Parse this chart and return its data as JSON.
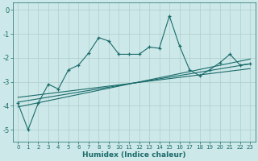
{
  "xlabel": "Humidex (Indice chaleur)",
  "bg_color": "#cde8e8",
  "grid_color": "#aecece",
  "line_color": "#1a6b6b",
  "xlim": [
    -0.5,
    23.5
  ],
  "ylim": [
    -5.5,
    0.3
  ],
  "yticks": [
    0,
    -1,
    -2,
    -3,
    -4,
    -5
  ],
  "xticks": [
    0,
    1,
    2,
    3,
    4,
    5,
    6,
    7,
    8,
    9,
    10,
    11,
    12,
    13,
    14,
    15,
    16,
    17,
    18,
    19,
    20,
    21,
    22,
    23
  ],
  "series1_x": [
    0,
    1,
    2,
    3,
    4,
    5,
    6,
    7,
    8,
    9,
    10,
    11,
    12,
    13,
    14,
    15,
    16,
    17,
    18,
    19,
    20,
    21,
    22,
    23
  ],
  "series1_y": [
    -3.9,
    -5.0,
    -3.9,
    -3.1,
    -3.3,
    -2.5,
    -2.3,
    -1.8,
    -1.15,
    -1.3,
    -1.85,
    -1.85,
    -1.85,
    -1.55,
    -1.6,
    -0.25,
    -1.5,
    -2.5,
    -2.75,
    -2.5,
    -2.2,
    -1.85,
    -2.3,
    -2.25
  ],
  "line1_x": [
    0,
    23
  ],
  "line1_y": [
    -4.05,
    -2.05
  ],
  "line2_x": [
    0,
    23
  ],
  "line2_y": [
    -3.85,
    -2.25
  ],
  "line3_x": [
    0,
    23
  ],
  "line3_y": [
    -3.65,
    -2.45
  ]
}
